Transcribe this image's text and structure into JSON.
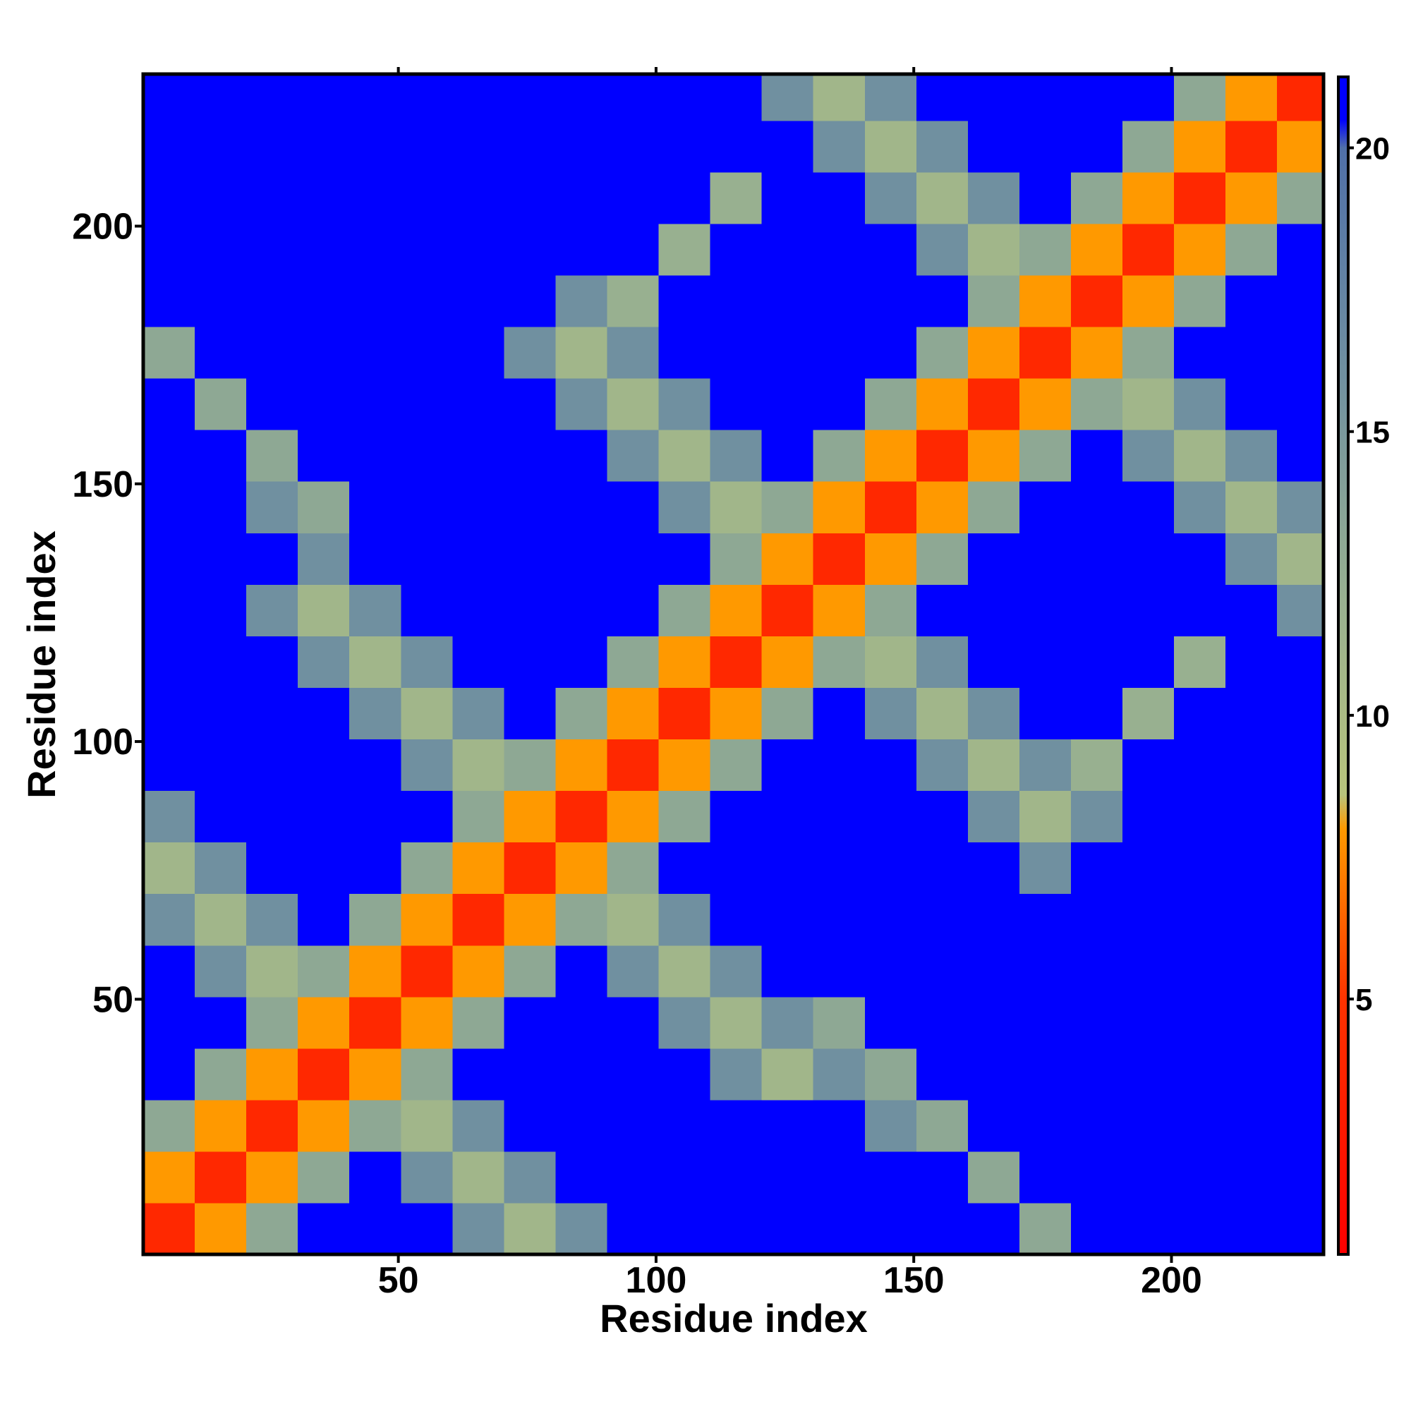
{
  "chart_data": {
    "type": "heatmap",
    "xlabel": "Residue index",
    "ylabel": "Residue index",
    "xlim": [
      0.5,
      229.5
    ],
    "ylim": [
      0.5,
      229.5
    ],
    "xticks": [
      50,
      100,
      150,
      200
    ],
    "yticks": [
      50,
      100,
      150,
      200
    ],
    "xbins": [
      0.5,
      10.5,
      20.5,
      30.5,
      40.5,
      50.5,
      60.5,
      70.5,
      80.5,
      90.5,
      100.5,
      110.5,
      120.5,
      130.5,
      140.5,
      150.5,
      160.5,
      170.5,
      180.5,
      190.5,
      200.5,
      210.5,
      220.5,
      229.5
    ],
    "ybins": [
      0.5,
      10.5,
      20.5,
      30.5,
      40.5,
      50.5,
      60.5,
      70.5,
      80.5,
      90.5,
      100.5,
      110.5,
      120.5,
      130.5,
      140.5,
      150.5,
      160.5,
      170.5,
      180.5,
      190.5,
      200.5,
      210.5,
      220.5,
      229.5
    ],
    "values": [
      [
        4,
        8,
        13,
        21,
        21,
        21,
        16,
        11,
        16,
        21,
        21,
        21,
        21,
        21,
        21,
        21,
        21,
        13,
        21,
        21,
        21,
        21,
        21
      ],
      [
        8,
        4,
        8,
        13,
        21,
        16,
        11,
        16,
        21,
        21,
        21,
        21,
        21,
        21,
        21,
        21,
        13,
        21,
        21,
        21,
        21,
        21,
        21
      ],
      [
        13,
        8,
        4,
        8,
        13,
        11,
        16,
        21,
        21,
        21,
        21,
        21,
        21,
        21,
        16,
        13,
        21,
        21,
        21,
        21,
        21,
        21,
        21
      ],
      [
        21,
        13,
        8,
        4,
        8,
        13,
        21,
        21,
        21,
        21,
        21,
        16,
        11,
        16,
        13,
        21,
        21,
        21,
        21,
        21,
        21,
        21,
        21
      ],
      [
        21,
        21,
        13,
        8,
        4,
        8,
        13,
        21,
        21,
        21,
        16,
        11,
        16,
        13,
        21,
        21,
        21,
        21,
        21,
        21,
        21,
        21,
        21
      ],
      [
        21,
        16,
        11,
        13,
        8,
        4,
        8,
        13,
        21,
        16,
        11,
        16,
        21,
        21,
        21,
        21,
        21,
        21,
        21,
        21,
        21,
        21,
        21
      ],
      [
        16,
        11,
        16,
        21,
        13,
        8,
        4,
        8,
        13,
        11,
        16,
        21,
        21,
        21,
        21,
        21,
        21,
        21,
        21,
        21,
        21,
        21,
        21
      ],
      [
        11,
        16,
        21,
        21,
        21,
        13,
        8,
        4,
        8,
        13,
        21,
        21,
        21,
        21,
        21,
        21,
        21,
        16,
        21,
        21,
        21,
        21,
        21
      ],
      [
        16,
        21,
        21,
        21,
        21,
        21,
        13,
        8,
        4,
        8,
        13,
        21,
        21,
        21,
        21,
        21,
        16,
        11,
        16,
        21,
        21,
        21,
        21
      ],
      [
        21,
        21,
        21,
        21,
        21,
        16,
        11,
        13,
        8,
        4,
        8,
        13,
        21,
        21,
        21,
        16,
        11,
        16,
        12,
        21,
        21,
        21,
        21
      ],
      [
        21,
        21,
        21,
        21,
        16,
        11,
        16,
        21,
        13,
        8,
        4,
        8,
        13,
        21,
        16,
        11,
        16,
        21,
        21,
        12,
        21,
        21,
        21
      ],
      [
        21,
        21,
        21,
        16,
        11,
        16,
        21,
        21,
        21,
        13,
        8,
        4,
        8,
        13,
        11,
        16,
        21,
        21,
        21,
        21,
        12,
        21,
        21
      ],
      [
        21,
        21,
        16,
        11,
        16,
        21,
        21,
        21,
        21,
        21,
        13,
        8,
        4,
        8,
        13,
        21,
        21,
        21,
        21,
        21,
        21,
        21,
        16
      ],
      [
        21,
        21,
        21,
        16,
        21,
        21,
        21,
        21,
        21,
        21,
        21,
        13,
        8,
        4,
        8,
        13,
        21,
        21,
        21,
        21,
        21,
        16,
        11
      ],
      [
        21,
        21,
        16,
        13,
        21,
        21,
        21,
        21,
        21,
        21,
        16,
        11,
        13,
        8,
        4,
        8,
        13,
        21,
        21,
        21,
        16,
        11,
        16
      ],
      [
        21,
        21,
        13,
        21,
        21,
        21,
        21,
        21,
        21,
        16,
        11,
        16,
        21,
        13,
        8,
        4,
        8,
        13,
        21,
        16,
        11,
        16,
        21
      ],
      [
        21,
        13,
        21,
        21,
        21,
        21,
        21,
        21,
        16,
        11,
        16,
        21,
        21,
        21,
        13,
        8,
        4,
        8,
        13,
        11,
        16,
        21,
        21
      ],
      [
        13,
        21,
        21,
        21,
        21,
        21,
        21,
        16,
        11,
        16,
        21,
        21,
        21,
        21,
        21,
        13,
        8,
        4,
        8,
        13,
        21,
        21,
        21
      ],
      [
        21,
        21,
        21,
        21,
        21,
        21,
        21,
        21,
        16,
        12,
        21,
        21,
        21,
        21,
        21,
        21,
        13,
        8,
        4,
        8,
        13,
        21,
        21
      ],
      [
        21,
        21,
        21,
        21,
        21,
        21,
        21,
        21,
        21,
        21,
        12,
        21,
        21,
        21,
        21,
        16,
        11,
        13,
        8,
        4,
        8,
        13,
        21
      ],
      [
        21,
        21,
        21,
        21,
        21,
        21,
        21,
        21,
        21,
        21,
        21,
        12,
        21,
        21,
        16,
        11,
        16,
        21,
        13,
        8,
        4,
        8,
        13
      ],
      [
        21,
        21,
        21,
        21,
        21,
        21,
        21,
        21,
        21,
        21,
        21,
        21,
        21,
        16,
        11,
        16,
        21,
        21,
        21,
        13,
        8,
        4,
        8
      ],
      [
        21,
        21,
        21,
        21,
        21,
        21,
        21,
        21,
        21,
        21,
        21,
        21,
        16,
        11,
        16,
        21,
        21,
        21,
        21,
        21,
        13,
        8,
        4
      ]
    ],
    "clim": [
      0.5,
      21.25
    ],
    "cticks": [
      5,
      10,
      15,
      20
    ],
    "colorscale": [
      [
        0.5,
        "#ff0000"
      ],
      [
        5,
        "#ff3300"
      ],
      [
        8,
        "#ff9900"
      ],
      [
        8.6,
        "#b8c47c"
      ],
      [
        12,
        "#98b090"
      ],
      [
        16,
        "#7090a0"
      ],
      [
        20,
        "#5070a8"
      ],
      [
        20.5,
        "#0000ff"
      ],
      [
        21.25,
        "#0000ff"
      ]
    ]
  }
}
